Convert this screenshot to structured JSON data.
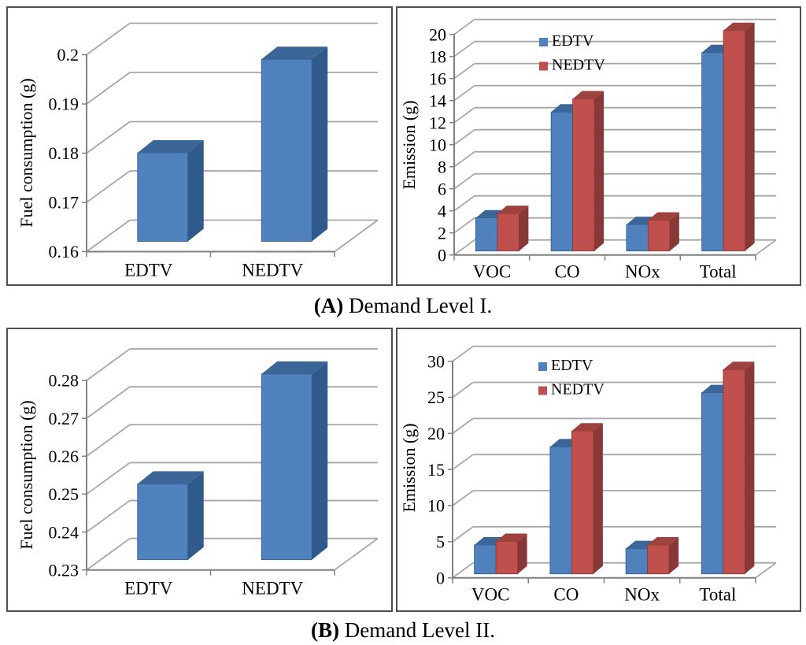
{
  "figure": {
    "background": "#ffffff",
    "captions": {
      "a": {
        "bold": "(A)",
        "text": " Demand Level I."
      },
      "b": {
        "bold": "(B)",
        "text": " Demand Level II."
      }
    }
  },
  "colors": {
    "panel_border": "#4f4f4f",
    "gridline": "#a6a6a6",
    "axis": "#808080",
    "text": "#000000",
    "palettes": {
      "blue": {
        "front": "#4f81bd",
        "top": "#3c6598",
        "side": "#305a8c"
      },
      "red": {
        "front": "#c0504d",
        "top": "#9e4240",
        "side": "#883836"
      }
    }
  },
  "chart_data": [
    {
      "id": "fuel_demand_1",
      "type": "bar",
      "style": "3d-column",
      "panel": "A",
      "title": "",
      "ylabel": "Fuel consumption (g)",
      "xlabel": "",
      "categories": [
        "EDTV",
        "NEDTV"
      ],
      "values": [
        0.178,
        0.197
      ],
      "series_palette": "blue",
      "ylim": [
        0.16,
        0.2
      ],
      "yticks": {
        "values": [
          0.16,
          0.17,
          0.18,
          0.19,
          0.2
        ],
        "labels": [
          "0.16",
          "0.17",
          "0.18",
          "0.19",
          "0.2"
        ]
      },
      "grid": true,
      "legend": null
    },
    {
      "id": "emission_demand_1",
      "type": "bar",
      "style": "3d-column",
      "panel": "A",
      "title": "",
      "ylabel": "Emission (g)",
      "xlabel": "",
      "categories": [
        "VOC",
        "CO",
        "NOx",
        "Total"
      ],
      "series": [
        {
          "name": "EDTV",
          "palette": "blue",
          "values": [
            3.0,
            12.6,
            2.4,
            18.0
          ]
        },
        {
          "name": "NEDTV",
          "palette": "red",
          "values": [
            3.4,
            13.8,
            2.8,
            20.0
          ]
        }
      ],
      "ylim": [
        0,
        20
      ],
      "yticks": {
        "values": [
          0,
          2,
          4,
          6,
          8,
          10,
          12,
          14,
          16,
          18,
          20
        ],
        "labels": [
          "0",
          "2",
          "4",
          "6",
          "8",
          "10",
          "12",
          "14",
          "16",
          "18",
          "20"
        ]
      },
      "grid": true,
      "legend": {
        "entries": [
          "EDTV",
          "NEDTV"
        ],
        "position": "top-center-inside"
      }
    },
    {
      "id": "fuel_demand_2",
      "type": "bar",
      "style": "3d-column",
      "panel": "B",
      "title": "",
      "ylabel": "Fuel consumption (g)",
      "xlabel": "",
      "categories": [
        "EDTV",
        "NEDTV"
      ],
      "values": [
        0.25,
        0.279
      ],
      "series_palette": "blue",
      "ylim": [
        0.23,
        0.28
      ],
      "yticks": {
        "values": [
          0.23,
          0.24,
          0.25,
          0.26,
          0.27,
          0.28
        ],
        "labels": [
          "0.23",
          "0.24",
          "0.25",
          "0.26",
          "0.27",
          "0.28"
        ]
      },
      "grid": true,
      "legend": null
    },
    {
      "id": "emission_demand_2",
      "type": "bar",
      "style": "3d-column",
      "panel": "B",
      "title": "",
      "ylabel": "Emission (g)",
      "xlabel": "",
      "categories": [
        "VOC",
        "CO",
        "NOx",
        "Total"
      ],
      "series": [
        {
          "name": "EDTV",
          "palette": "blue",
          "values": [
            4.0,
            17.6,
            3.5,
            25.1
          ]
        },
        {
          "name": "NEDTV",
          "palette": "red",
          "values": [
            4.5,
            19.8,
            4.0,
            28.3
          ]
        }
      ],
      "ylim": [
        0,
        30
      ],
      "yticks": {
        "values": [
          0,
          5,
          10,
          15,
          20,
          25,
          30
        ],
        "labels": [
          "0",
          "5",
          "10",
          "15",
          "20",
          "25",
          "30"
        ]
      },
      "grid": true,
      "legend": {
        "entries": [
          "EDTV",
          "NEDTV"
        ],
        "position": "top-center-inside"
      }
    }
  ]
}
